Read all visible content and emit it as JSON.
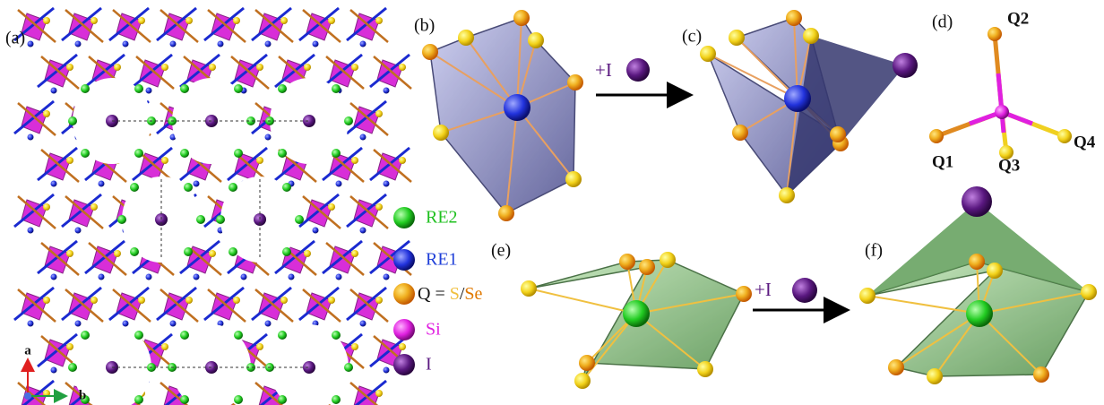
{
  "panel_labels": {
    "a": "(a)",
    "b": "(b)",
    "c": "(c)",
    "d": "(d)",
    "e": "(e)",
    "f": "(f)"
  },
  "axis_labels": {
    "a": "a",
    "b": "b"
  },
  "legend": {
    "re2": "RE2",
    "re1": "RE1",
    "q_prefix": "Q = ",
    "s": "S",
    "slash": "/",
    "se": "Se",
    "si": "Si",
    "i": "I"
  },
  "reaction_labels": [
    "+I",
    "+I"
  ],
  "sites": {
    "q1": "Q1",
    "q2": "Q2",
    "q3": "Q3",
    "q4": "Q4"
  }
}
